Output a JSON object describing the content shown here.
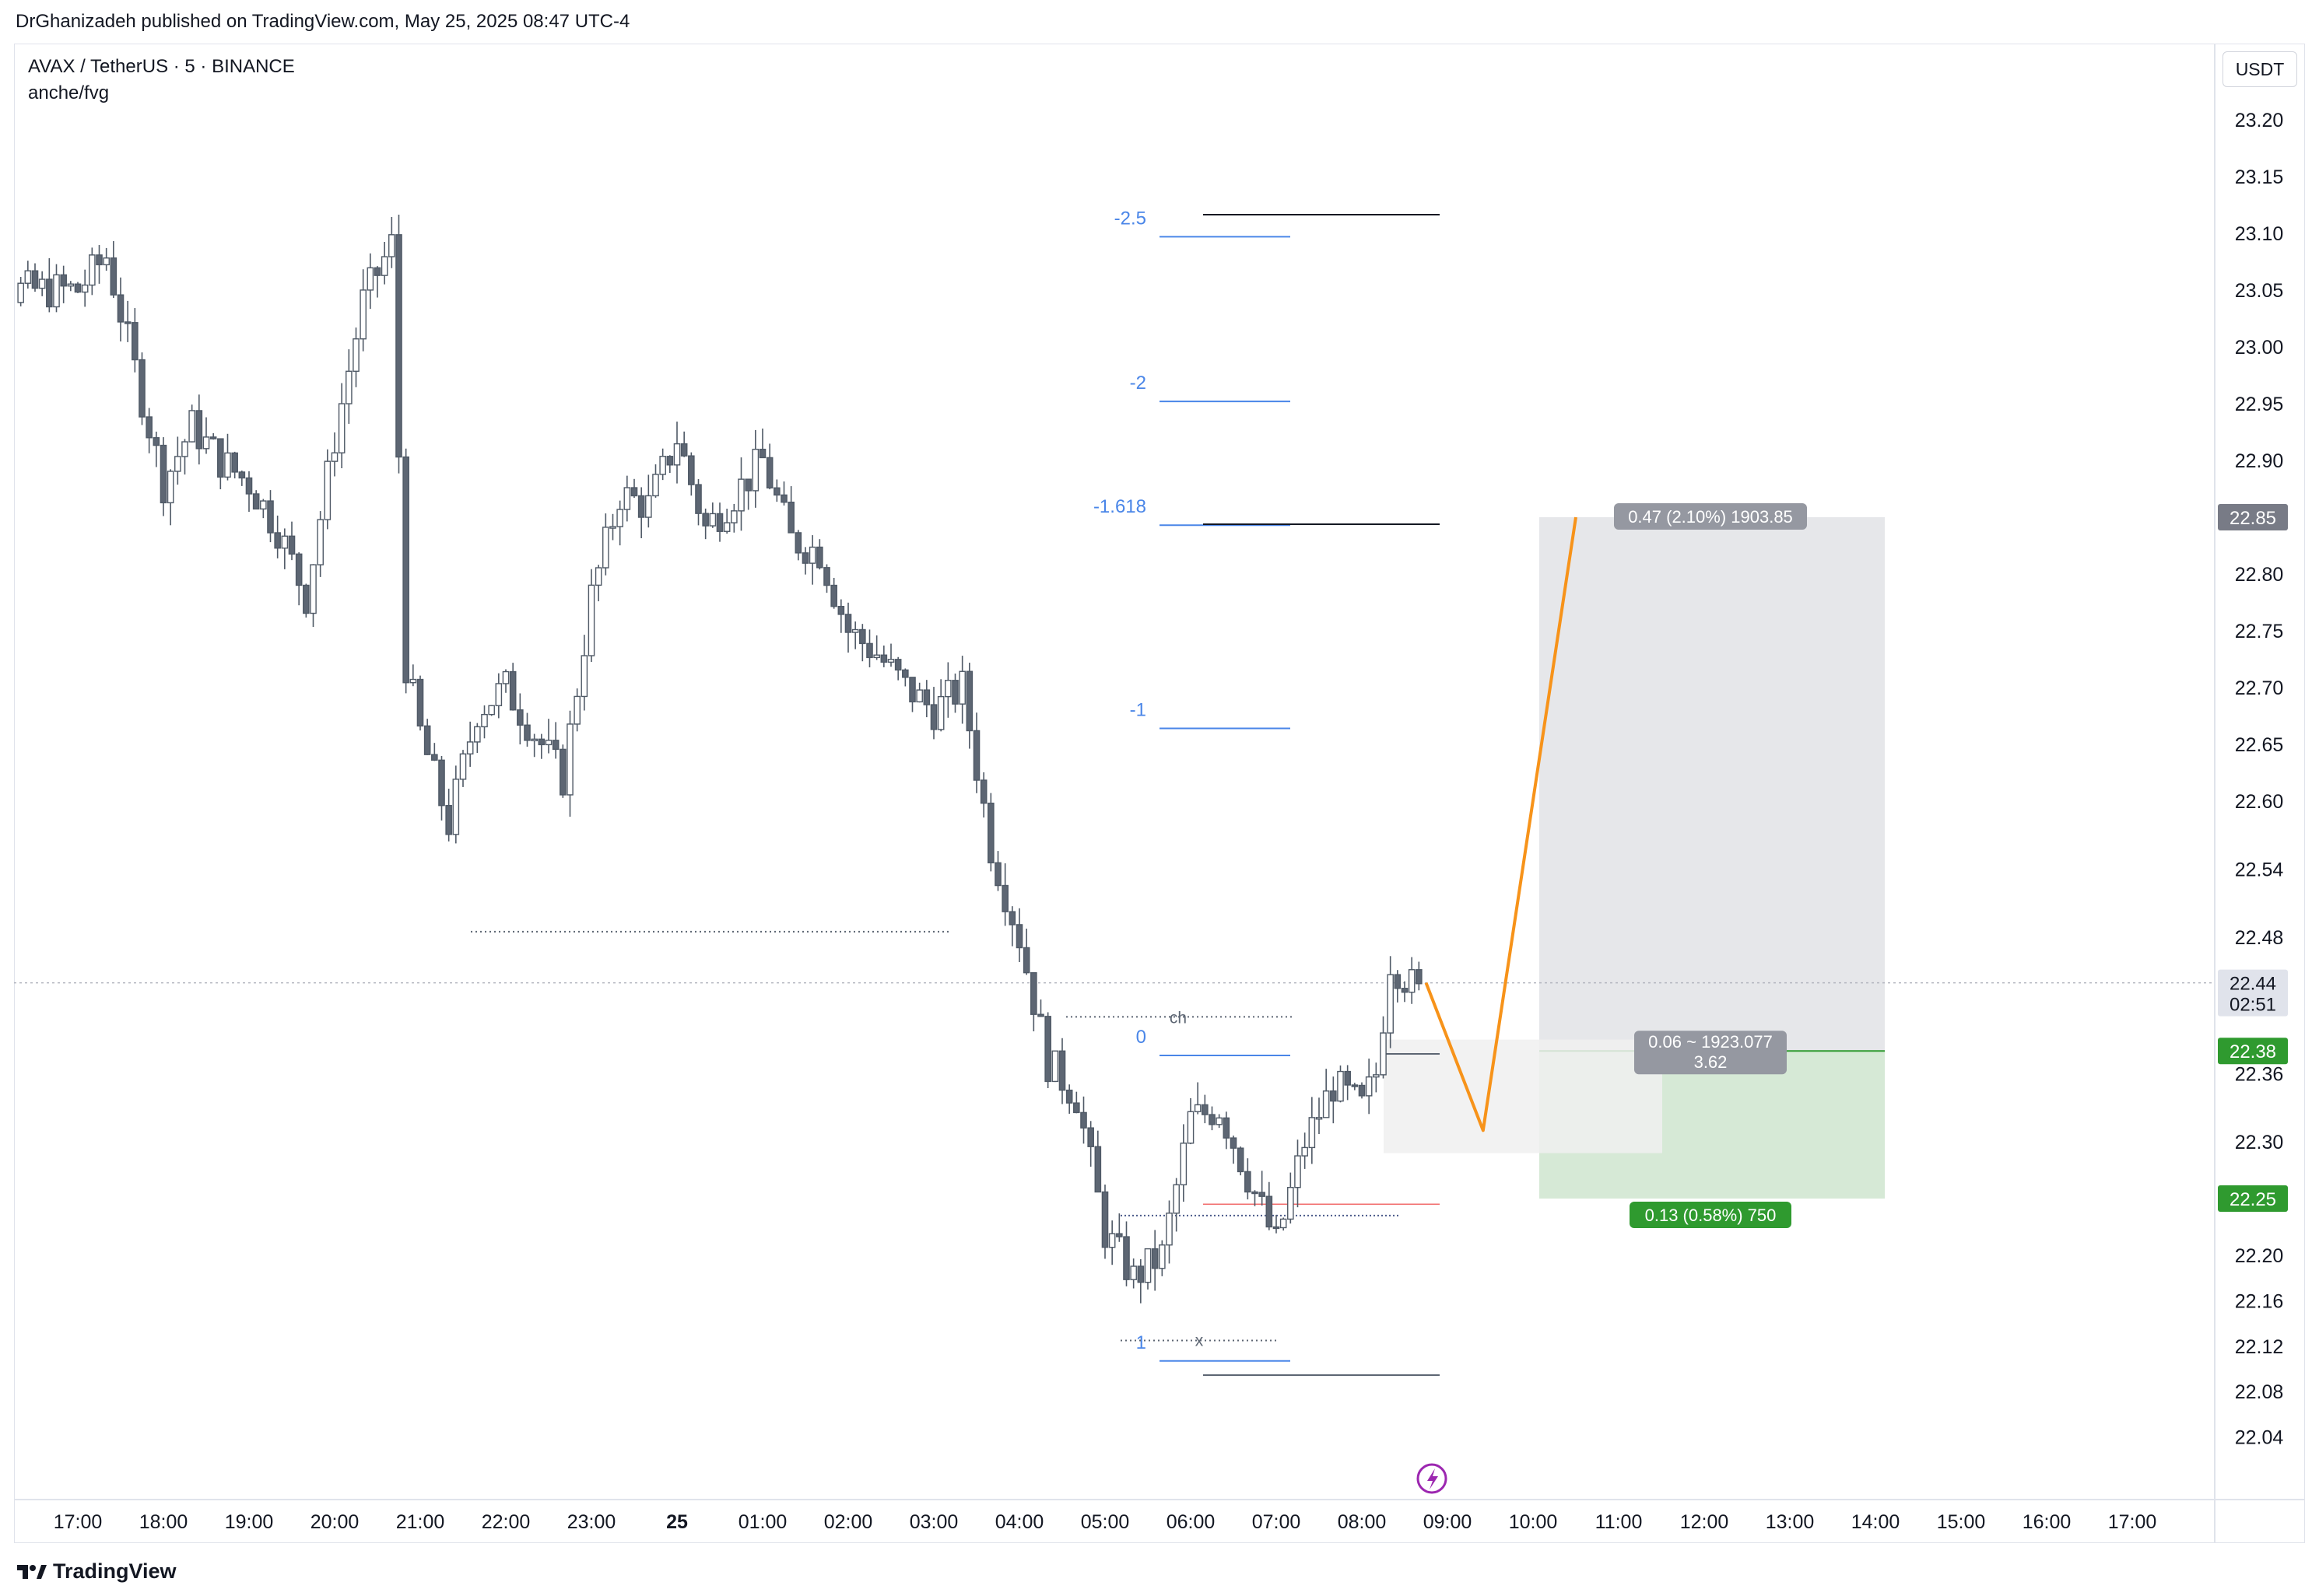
{
  "header": {
    "published_by": "DrGhanizadeh published on TradingView.com, May 25, 2025 08:47 UTC-4"
  },
  "chart_header": {
    "symbol": "AVAX / TetherUS · 5 · BINANCE",
    "indicator": "anche/fvg"
  },
  "price_axis": {
    "currency_button": "USDT"
  },
  "footer": {
    "logo_text": "TradingView"
  },
  "colors": {
    "candle_up_fill": "#ffffff",
    "candle_down_fill": "#5d6673",
    "candle_outline": "#4f5966",
    "fvg_highlight": "#7ee8a7",
    "fib_line": "#4a86e8",
    "projection": "#f7931a",
    "target_zone": "#e6e7ea",
    "stop_zone": "#d6e9d6",
    "green_tag": "#2f9a2f",
    "gray_tag": "#9598a1",
    "current_price_tag": "#e0e3eb"
  },
  "chart_data": {
    "type": "candlestick",
    "symbol": "AVAX / TetherUS",
    "interval": "5",
    "exchange": "BINANCE",
    "xlabel": "",
    "ylabel": "",
    "ylim": [
      22.0,
      23.24
    ],
    "x_tick_labels": [
      "17:00",
      "18:00",
      "19:00",
      "20:00",
      "21:00",
      "22:00",
      "23:00",
      "25",
      "01:00",
      "02:00",
      "03:00",
      "04:00",
      "05:00",
      "06:00",
      "07:00",
      "08:00",
      "09:00",
      "10:00",
      "11:00",
      "12:00",
      "13:00",
      "14:00",
      "15:00",
      "16:00",
      "17:00"
    ],
    "y_tick_labels": [
      "23.20",
      "23.15",
      "23.10",
      "23.05",
      "23.00",
      "22.95",
      "22.90",
      "22.80",
      "22.75",
      "22.70",
      "22.65",
      "22.60",
      "22.54",
      "22.48",
      "22.36",
      "22.30",
      "22.20",
      "22.16",
      "22.12",
      "22.08",
      "22.04"
    ],
    "y_tick_values": [
      23.2,
      23.15,
      23.1,
      23.05,
      23.0,
      22.95,
      22.9,
      22.8,
      22.75,
      22.7,
      22.65,
      22.6,
      22.54,
      22.48,
      22.36,
      22.3,
      22.2,
      22.16,
      22.12,
      22.08,
      22.04
    ],
    "close_path": [
      [
        "17:00",
        23.05
      ],
      [
        "17:20",
        23.08
      ],
      [
        "17:40",
        22.98
      ],
      [
        "18:00",
        22.88
      ],
      [
        "18:20",
        22.93
      ],
      [
        "18:40",
        22.9
      ],
      [
        "19:00",
        22.88
      ],
      [
        "19:20",
        22.84
      ],
      [
        "19:40",
        22.78
      ],
      [
        "20:00",
        22.92
      ],
      [
        "20:20",
        23.04
      ],
      [
        "20:40",
        23.09
      ],
      [
        "20:50",
        22.72
      ],
      [
        "21:00",
        22.66
      ],
      [
        "21:20",
        22.58
      ],
      [
        "21:40",
        22.68
      ],
      [
        "22:00",
        22.7
      ],
      [
        "22:20",
        22.66
      ],
      [
        "22:40",
        22.62
      ],
      [
        "23:00",
        22.78
      ],
      [
        "23:20",
        22.87
      ],
      [
        "23:40",
        22.86
      ],
      [
        "00:00",
        22.92
      ],
      [
        "00:20",
        22.84
      ],
      [
        "00:40",
        22.87
      ],
      [
        "01:00",
        22.9
      ],
      [
        "01:20",
        22.83
      ],
      [
        "01:40",
        22.82
      ],
      [
        "02:00",
        22.75
      ],
      [
        "02:20",
        22.73
      ],
      [
        "02:40",
        22.7
      ],
      [
        "03:00",
        22.68
      ],
      [
        "03:20",
        22.7
      ],
      [
        "03:40",
        22.56
      ],
      [
        "04:00",
        22.48
      ],
      [
        "04:20",
        22.37
      ],
      [
        "04:40",
        22.34
      ],
      [
        "05:00",
        22.22
      ],
      [
        "05:20",
        22.18
      ],
      [
        "05:40",
        22.2
      ],
      [
        "06:00",
        22.32
      ],
      [
        "06:20",
        22.33
      ],
      [
        "06:40",
        22.27
      ],
      [
        "07:00",
        22.21
      ],
      [
        "07:20",
        22.3
      ],
      [
        "07:40",
        22.35
      ],
      [
        "08:00",
        22.33
      ],
      [
        "08:10",
        22.36
      ],
      [
        "08:20",
        22.46
      ],
      [
        "08:40",
        22.43
      ],
      [
        "08:45",
        22.44
      ]
    ],
    "last_price": {
      "value": "22.44",
      "countdown": "02:51"
    },
    "fib_levels": [
      {
        "label": "-2.5",
        "price": 23.097
      },
      {
        "label": "-2",
        "price": 22.952
      },
      {
        "label": "-1.618",
        "price": 22.843
      },
      {
        "label": "-1",
        "price": 22.664
      },
      {
        "label": "0",
        "price": 22.376
      },
      {
        "label": "1",
        "price": 22.107
      }
    ],
    "annotations": [
      "ch",
      "x"
    ],
    "position": {
      "type": "long",
      "entry": "22.38",
      "target": "22.85",
      "stop": "22.25",
      "target_label": "0.47 (2.10%) 1903.85",
      "center_label_line1": "0.06 ~ 1923.077",
      "center_label_line2": "3.62",
      "stop_label": "0.13 (0.58%) 750"
    },
    "projection_path": [
      [
        "08:45",
        22.44
      ],
      [
        "09:25",
        22.31
      ],
      [
        "10:30",
        22.85
      ]
    ]
  }
}
